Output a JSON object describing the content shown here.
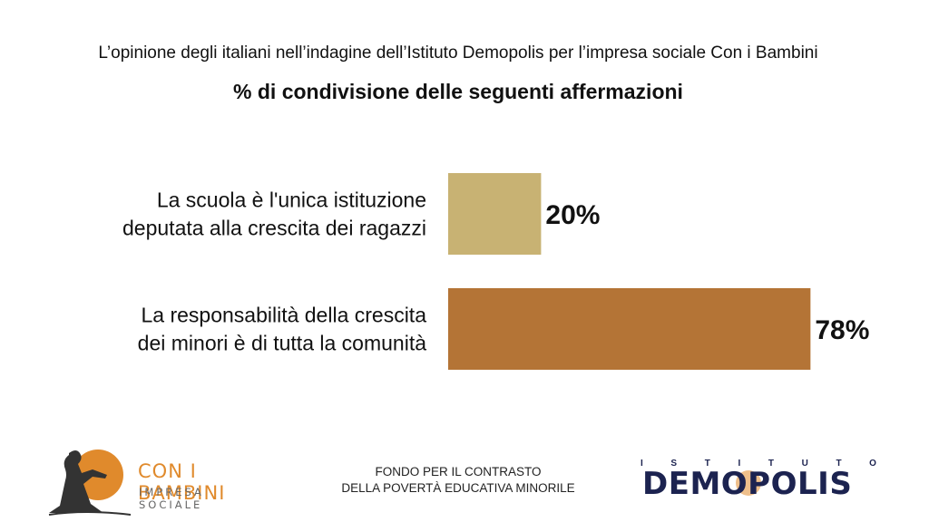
{
  "header": {
    "subtitle": "L’opinione degli italiani nell’indagine dell’Istituto Demopolis per l’impresa sociale Con i Bambini",
    "title": "% di condivisione delle seguenti affermazioni"
  },
  "chart_data": {
    "type": "bar",
    "orientation": "horizontal",
    "categories": [
      [
        "La scuola è l'unica istituzione",
        "deputata alla crescita dei ragazzi"
      ],
      [
        "La responsabilità della crescita",
        "dei minori è di tutta la comunità"
      ]
    ],
    "values": [
      20,
      78
    ],
    "value_labels": [
      "20%",
      "78%"
    ],
    "colors": [
      "#c8b273",
      "#b47436"
    ],
    "xlim": [
      0,
      100
    ],
    "grid": false,
    "legend": "none"
  },
  "footer": {
    "center_line1": "FONDO PER IL CONTRASTO",
    "center_line2": "DELLA POVERTÀ EDUCATIVA MINORILE",
    "left_logo_name": "CON I BAMBINI",
    "left_logo_tag": "IMPRESA SOCIALE",
    "right_logo_small": "ISTITUTO",
    "right_logo_big": "DEMOPOLIS"
  },
  "colors": {
    "bar_1": "#c8b273",
    "bar_2": "#b47436",
    "logo_orange": "#e08a2c",
    "logo_navy": "#1c2350"
  }
}
